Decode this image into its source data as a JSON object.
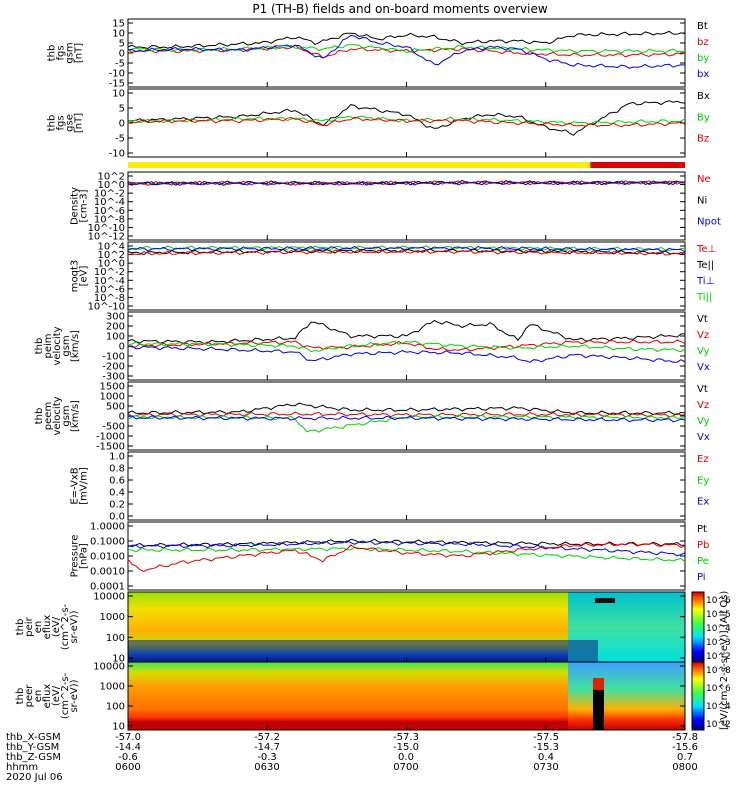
{
  "title": "P1 (TH-B) fields and on-board moments overview",
  "colors": {
    "black": "#000000",
    "red": "#e00000",
    "green": "#00d000",
    "blue": "#0000e0",
    "yellow": "#ffee00"
  },
  "chart_data": [
    {
      "type": "line",
      "id": "fgs_gsm",
      "ylabel_lines": [
        "thb",
        "fgs",
        "gsm",
        "[nT]"
      ],
      "yticks": [
        "15",
        "10",
        "5",
        "0",
        "-5",
        "-10",
        "-15"
      ],
      "ylim": [
        -15,
        15
      ],
      "legend": [
        {
          "name": "Bt",
          "color": "black"
        },
        {
          "name": "bz",
          "color": "red"
        },
        {
          "name": "by",
          "color": "green"
        },
        {
          "name": "bx",
          "color": "blue"
        }
      ],
      "series": [
        {
          "name": "Bt",
          "color": "black",
          "x": [
            0,
            0.08,
            0.16,
            0.24,
            0.3,
            0.34,
            0.4,
            0.45,
            0.5,
            0.55,
            0.6,
            0.65,
            0.7,
            0.75,
            0.8,
            0.9,
            1.0
          ],
          "values": [
            3,
            3,
            4,
            5,
            8,
            5,
            10,
            7,
            9,
            8,
            5,
            6,
            6,
            5,
            9,
            9.5,
            10
          ]
        },
        {
          "name": "bz",
          "color": "red",
          "x": [
            0,
            0.1,
            0.2,
            0.3,
            0.35,
            0.4,
            0.5,
            0.6,
            0.7,
            0.8,
            0.9,
            1.0
          ],
          "values": [
            1,
            1,
            1.5,
            3,
            -2,
            2,
            1,
            2,
            0,
            -1,
            -1,
            -0.5
          ]
        },
        {
          "name": "by",
          "color": "green",
          "x": [
            0,
            0.1,
            0.2,
            0.3,
            0.35,
            0.4,
            0.5,
            0.6,
            0.7,
            0.8,
            0.9,
            1.0
          ],
          "values": [
            2,
            1.5,
            2,
            3,
            2,
            4,
            1,
            3,
            2,
            1,
            1,
            1
          ]
        },
        {
          "name": "bx",
          "color": "blue",
          "x": [
            0,
            0.1,
            0.2,
            0.3,
            0.35,
            0.4,
            0.45,
            0.5,
            0.55,
            0.6,
            0.65,
            0.7,
            0.75,
            0.8,
            0.9,
            1.0
          ],
          "values": [
            1,
            2,
            1.5,
            4,
            -3,
            9,
            5,
            3,
            -6,
            1,
            3,
            2,
            -3,
            -6,
            -7,
            -6
          ]
        }
      ]
    },
    {
      "type": "line",
      "id": "fgs_gse",
      "ylabel_lines": [
        "thb",
        "fgs",
        "gse",
        "[nT]"
      ],
      "yticks": [
        "10",
        "5",
        "0",
        "-5",
        "-10"
      ],
      "ylim": [
        -14,
        14
      ],
      "legend": [
        {
          "name": "Bx",
          "color": "black"
        },
        {
          "name": "By",
          "color": "green"
        },
        {
          "name": "Bz",
          "color": "red"
        }
      ],
      "series": [
        {
          "name": "Bx",
          "color": "black",
          "x": [
            0,
            0.1,
            0.2,
            0.3,
            0.35,
            0.4,
            0.45,
            0.5,
            0.55,
            0.6,
            0.65,
            0.7,
            0.75,
            0.8,
            0.9,
            1.0
          ],
          "values": [
            1,
            2,
            3,
            6,
            -1,
            8,
            6,
            4,
            -3,
            2,
            4,
            3,
            -2,
            -5,
            9,
            10
          ]
        },
        {
          "name": "By",
          "color": "green",
          "x": [
            0,
            0.1,
            0.2,
            0.3,
            0.35,
            0.4,
            0.5,
            0.6,
            0.7,
            0.8,
            0.9,
            1.0
          ],
          "values": [
            1,
            1,
            2,
            2,
            1,
            3,
            1,
            2,
            1,
            0,
            0.5,
            1
          ]
        },
        {
          "name": "Bz",
          "color": "red",
          "x": [
            0,
            0.1,
            0.2,
            0.3,
            0.35,
            0.4,
            0.5,
            0.6,
            0.7,
            0.8,
            0.9,
            1.0
          ],
          "values": [
            0.5,
            1,
            1,
            2,
            -1,
            2,
            1,
            1,
            0,
            -1,
            -1,
            0
          ]
        }
      ]
    },
    {
      "type": "mode_bar",
      "id": "mode_bar",
      "segments": [
        {
          "from": 0,
          "to": 0.83,
          "color": "yellow"
        },
        {
          "from": 0.83,
          "to": 1.0,
          "color": "red"
        }
      ]
    },
    {
      "type": "line",
      "id": "density",
      "ylabel_lines": [
        "Density",
        "[cm-3]"
      ],
      "yticks": [
        "10^2",
        "10^0",
        "10^-2",
        "10^-4",
        "10^-6",
        "10^-8",
        "10^-10",
        "10^-12"
      ],
      "ylog": true,
      "ylim": [
        -12,
        2
      ],
      "legend": [
        {
          "name": "Ne",
          "color": "red"
        },
        {
          "name": "Ni",
          "color": "black"
        },
        {
          "name": "Npot",
          "color": "blue"
        }
      ],
      "series": [
        {
          "name": "Ni",
          "color": "black",
          "x": [
            0,
            0.2,
            0.4,
            0.6,
            0.8,
            1.0
          ],
          "values": [
            0.3,
            0.4,
            0.3,
            0.5,
            0.4,
            0.5
          ]
        },
        {
          "name": "Ne",
          "color": "red",
          "x": [
            0,
            0.2,
            0.4,
            0.6,
            0.8,
            1.0
          ],
          "values": [
            0.2,
            0.35,
            0.3,
            0.45,
            0.4,
            0.45
          ]
        },
        {
          "name": "Npot",
          "color": "blue",
          "x": [
            0,
            0.2,
            0.4,
            0.6,
            0.8,
            1.0
          ],
          "values": [
            0.25,
            0.3,
            0.25,
            0.4,
            0.35,
            0.5
          ]
        }
      ]
    },
    {
      "type": "line",
      "id": "temperature",
      "ylabel_lines": [
        "moqt3",
        "[eV]"
      ],
      "yticks": [
        "10^4",
        "10^2",
        "10^0",
        "10^-2",
        "10^-4",
        "10^-6",
        "10^-8",
        "10^-10"
      ],
      "ylog": true,
      "ylim": [
        -10,
        4
      ],
      "legend": [
        {
          "name": "Te⊥",
          "color": "red"
        },
        {
          "name": "Te||",
          "color": "black"
        },
        {
          "name": "Ti⊥",
          "color": "blue"
        },
        {
          "name": "Ti||",
          "color": "green"
        }
      ],
      "series": [
        {
          "name": "Ti||",
          "color": "green",
          "x": [
            0,
            0.3,
            0.6,
            0.85,
            1.0
          ],
          "values": [
            3.5,
            3.6,
            3.6,
            3.3,
            3.2
          ]
        },
        {
          "name": "Ti⊥",
          "color": "blue",
          "x": [
            0,
            0.3,
            0.6,
            0.85,
            1.0
          ],
          "values": [
            3.3,
            3.4,
            3.5,
            3.2,
            3.1
          ]
        },
        {
          "name": "Te||",
          "color": "black",
          "x": [
            0,
            0.3,
            0.6,
            0.85,
            1.0
          ],
          "values": [
            2.4,
            2.8,
            2.9,
            2.6,
            2.3
          ]
        },
        {
          "name": "Te⊥",
          "color": "red",
          "x": [
            0,
            0.3,
            0.6,
            0.85,
            1.0
          ],
          "values": [
            2.2,
            2.6,
            2.7,
            2.4,
            2.2
          ]
        }
      ]
    },
    {
      "type": "line",
      "id": "peim_velocity",
      "ylabel_lines": [
        "thb",
        "peim",
        "velocity",
        "gsm",
        "[km/s]"
      ],
      "yticks": [
        "300",
        "200",
        "100",
        "0",
        "-100",
        "-200",
        "-300"
      ],
      "ylim": [
        -300,
        300
      ],
      "legend": [
        {
          "name": "Vt",
          "color": "black"
        },
        {
          "name": "Vz",
          "color": "red"
        },
        {
          "name": "Vy",
          "color": "green"
        },
        {
          "name": "Vx",
          "color": "blue"
        }
      ],
      "series": [
        {
          "name": "Vt",
          "color": "black",
          "x": [
            0,
            0.15,
            0.3,
            0.33,
            0.4,
            0.5,
            0.55,
            0.6,
            0.65,
            0.7,
            0.72,
            0.8,
            0.9,
            1.0
          ],
          "values": [
            50,
            40,
            80,
            250,
            100,
            100,
            250,
            200,
            220,
            60,
            220,
            60,
            80,
            110
          ]
        },
        {
          "name": "Vz",
          "color": "red",
          "x": [
            0,
            0.15,
            0.3,
            0.33,
            0.4,
            0.5,
            0.55,
            0.6,
            0.7,
            0.8,
            0.9,
            1.0
          ],
          "values": [
            0,
            20,
            40,
            -20,
            -10,
            30,
            -30,
            -40,
            0,
            40,
            40,
            40
          ]
        },
        {
          "name": "Vy",
          "color": "green",
          "x": [
            0,
            0.15,
            0.3,
            0.33,
            0.4,
            0.5,
            0.6,
            0.7,
            0.8,
            0.9,
            1.0
          ],
          "values": [
            20,
            20,
            0,
            -50,
            0,
            40,
            0,
            -20,
            0,
            -30,
            -40
          ]
        },
        {
          "name": "Vx",
          "color": "blue",
          "x": [
            0,
            0.15,
            0.3,
            0.33,
            0.4,
            0.5,
            0.6,
            0.7,
            0.72,
            0.8,
            0.9,
            1.0
          ],
          "values": [
            -10,
            -30,
            -60,
            -150,
            -80,
            -60,
            -70,
            -120,
            -160,
            -90,
            -120,
            -160
          ]
        }
      ]
    },
    {
      "type": "line",
      "id": "peem_velocity",
      "ylabel_lines": [
        "thb",
        "peem",
        "velocity",
        "gsm",
        "[km/s]"
      ],
      "yticks": [
        "1500",
        "1000",
        "500",
        "0",
        "-500",
        "-1000",
        "-1500"
      ],
      "ylim": [
        -1500,
        1500
      ],
      "legend": [
        {
          "name": "Vt",
          "color": "black"
        },
        {
          "name": "Vz",
          "color": "red"
        },
        {
          "name": "Vy",
          "color": "green"
        },
        {
          "name": "Vx",
          "color": "blue"
        }
      ],
      "series": [
        {
          "name": "Vt",
          "color": "black",
          "x": [
            0,
            0.2,
            0.3,
            0.4,
            0.5,
            0.6,
            0.7,
            0.8,
            0.9,
            1.0
          ],
          "values": [
            150,
            200,
            600,
            300,
            300,
            350,
            400,
            150,
            150,
            150
          ]
        },
        {
          "name": "Vz",
          "color": "red",
          "x": [
            0,
            0.3,
            0.5,
            0.7,
            1.0
          ],
          "values": [
            50,
            100,
            60,
            80,
            40
          ]
        },
        {
          "name": "Vy",
          "color": "green",
          "x": [
            0,
            0.3,
            0.32,
            0.5,
            0.7,
            1.0
          ],
          "values": [
            -50,
            -100,
            -800,
            -50,
            -50,
            -80
          ]
        },
        {
          "name": "Vx",
          "color": "blue",
          "x": [
            0,
            0.3,
            0.5,
            0.7,
            0.9,
            1.0
          ],
          "values": [
            -80,
            -120,
            -100,
            -150,
            -200,
            -200
          ]
        }
      ]
    },
    {
      "type": "line",
      "id": "exb_field",
      "ylabel_lines": [
        "E=-VxB",
        "[mV/m]"
      ],
      "yticks": [
        "1.0",
        "0.8",
        "0.6",
        "0.4",
        "0.2",
        "0.0"
      ],
      "ylim": [
        0,
        1
      ],
      "legend": [
        {
          "name": "Ez",
          "color": "red"
        },
        {
          "name": "Ey",
          "color": "green"
        },
        {
          "name": "Ex",
          "color": "blue"
        }
      ],
      "series": []
    },
    {
      "type": "line",
      "id": "pressure",
      "ylabel_lines": [
        "Pressure",
        "[nPa]"
      ],
      "yticks": [
        "1.0000",
        "0.1000",
        "0.0100",
        "0.0010",
        "0.0001"
      ],
      "ylog": true,
      "ylim": [
        -4,
        0
      ],
      "legend": [
        {
          "name": "Pt",
          "color": "black"
        },
        {
          "name": "Pb",
          "color": "red"
        },
        {
          "name": "Pe",
          "color": "green"
        },
        {
          "name": "Pi",
          "color": "blue"
        }
      ],
      "series": [
        {
          "name": "Pt",
          "color": "black",
          "x": [
            0,
            0.2,
            0.4,
            0.6,
            0.8,
            1.0
          ],
          "values": [
            -1.3,
            -1.2,
            -1.0,
            -1.1,
            -1.2,
            -1.2
          ]
        },
        {
          "name": "Pi",
          "color": "blue",
          "x": [
            0,
            0.2,
            0.4,
            0.6,
            0.85,
            1.0
          ],
          "values": [
            -1.35,
            -1.3,
            -1.1,
            -1.2,
            -1.6,
            -1.9
          ]
        },
        {
          "name": "Pe",
          "color": "green",
          "x": [
            0,
            0.2,
            0.4,
            0.6,
            0.85,
            1.0
          ],
          "values": [
            -1.6,
            -1.6,
            -1.5,
            -1.7,
            -2.1,
            -2.3
          ]
        },
        {
          "name": "Pb",
          "color": "red",
          "x": [
            0,
            0.02,
            0.1,
            0.2,
            0.3,
            0.35,
            0.4,
            0.5,
            0.6,
            0.7,
            0.8,
            0.9,
            1.0
          ],
          "values": [
            -2.2,
            -3.0,
            -2.4,
            -2.0,
            -1.6,
            -2.3,
            -1.4,
            -1.8,
            -2.0,
            -1.6,
            -1.3,
            -1.2,
            -1.3
          ]
        }
      ]
    },
    {
      "type": "heatmap",
      "id": "peir_spectrogram",
      "ylabel_lines": [
        "thb",
        "peir",
        "en",
        "eflux",
        "(eV/",
        "(cm^2-s-",
        "sr-eV))"
      ],
      "yticks": [
        "10000",
        "1000",
        "100",
        "10"
      ],
      "colorbar_ticks": [
        "10^6",
        "10^5",
        "10^4",
        "10^3",
        "10^2"
      ]
    },
    {
      "type": "heatmap",
      "id": "peer_spectrogram",
      "ylabel_lines": [
        "thb",
        "peer",
        "en",
        "eflux",
        "(eV/",
        "(cm^2-s-",
        "sr-eV))"
      ],
      "yticks": [
        "10000",
        "1000",
        "100",
        "10"
      ],
      "colorbar_ticks": [
        "10^8",
        "10^6",
        "10^4",
        "10^2"
      ]
    }
  ],
  "colorbar_label": "[eV/(cm^2-s-sr-eV)] (All Qs)",
  "x_axis": {
    "rows": [
      {
        "label": "thb_X-GSM",
        "values": [
          "-57.0",
          "-57.2",
          "-57.3",
          "-57.5",
          "-57.8"
        ]
      },
      {
        "label": "thb_Y-GSM",
        "values": [
          "-14.4",
          "-14.7",
          "-15.0",
          "-15.3",
          "-15.6"
        ]
      },
      {
        "label": "thb_Z-GSM",
        "values": [
          "-0.6",
          "-0.3",
          "0.0",
          "0.4",
          "0.7"
        ]
      },
      {
        "label": "hhmm",
        "values": [
          "0600",
          "0630",
          "0700",
          "0730",
          "0800"
        ]
      }
    ],
    "date": "2020 Jul 06"
  }
}
